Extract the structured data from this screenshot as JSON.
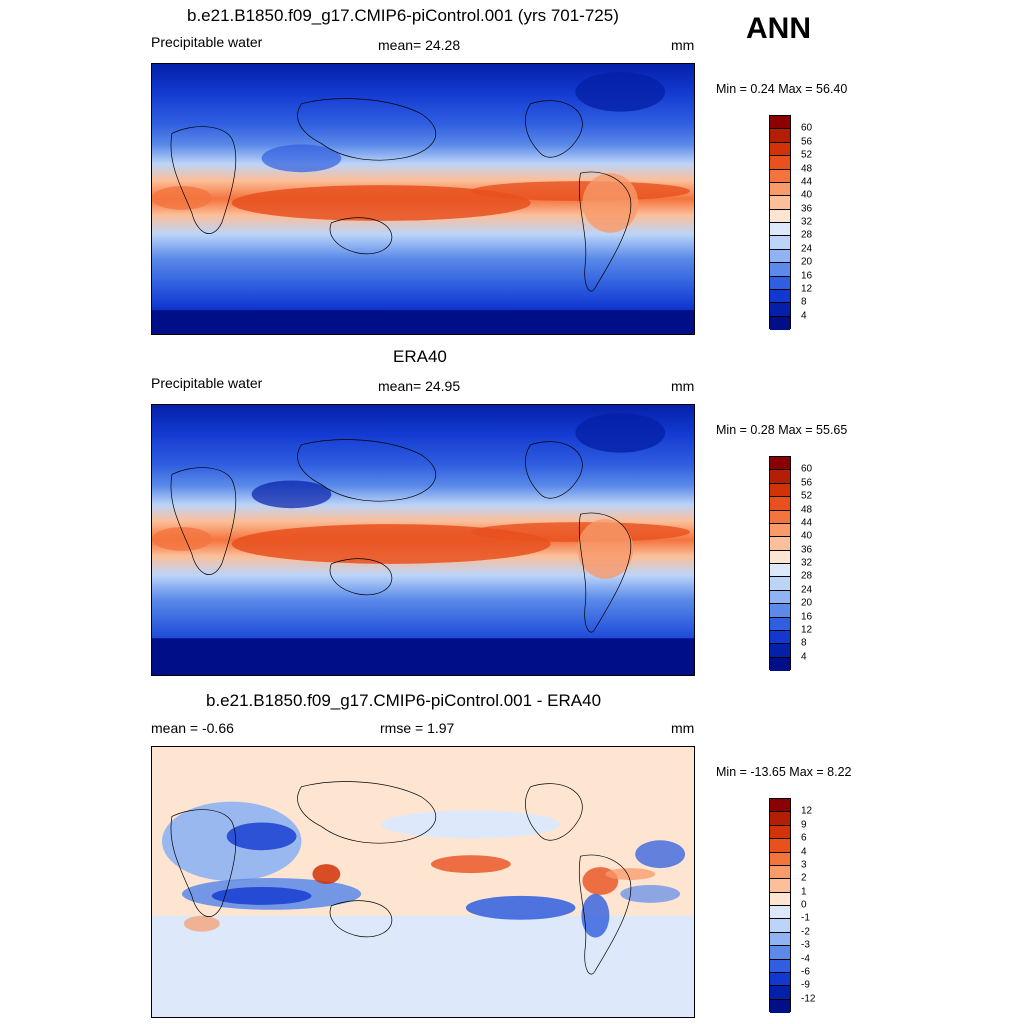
{
  "season": "ANN",
  "panels": [
    {
      "title": "b.e21.B1850.f09_g17.CMIP6-piControl.001 (yrs 701-725)",
      "left": "Precipitable water",
      "center": "mean=  24.28",
      "units": "mm",
      "minmax": "Min =   0.24 Max =  56.40"
    },
    {
      "title": "ERA40",
      "left": "Precipitable water",
      "center": "mean=  24.95",
      "units": "mm",
      "minmax": "Min =   0.28 Max =  55.65"
    },
    {
      "title": "b.e21.B1850.f09_g17.CMIP6-piControl.001 - ERA40",
      "left": "mean =  -0.66",
      "center": "rmse =   1.97",
      "units": "mm",
      "minmax": "Min = -13.65 Max =   8.22"
    }
  ],
  "colorbars": {
    "abs": {
      "labels": [
        "60",
        "56",
        "52",
        "48",
        "44",
        "40",
        "36",
        "32",
        "28",
        "24",
        "20",
        "16",
        "12",
        "8",
        "4"
      ],
      "colors": [
        "#8b0000",
        "#b41e05",
        "#d23208",
        "#e8501e",
        "#f4743e",
        "#f89a6a",
        "#fbbf9a",
        "#fde5d2",
        "#dde9fb",
        "#bcd4f8",
        "#8fb3f3",
        "#5b8ae9",
        "#2f5ee0",
        "#1238d0",
        "#0520a8",
        "#000f88"
      ]
    },
    "diff": {
      "labels": [
        "12",
        "9",
        "6",
        "4",
        "3",
        "2",
        "1",
        "0",
        "-1",
        "-2",
        "-3",
        "-4",
        "-6",
        "-9",
        "-12"
      ],
      "colors": [
        "#8b0000",
        "#b41e05",
        "#d23208",
        "#e8501e",
        "#f4743e",
        "#f89a6a",
        "#fbbf9a",
        "#fde5d2",
        "#dde9fb",
        "#bcd4f8",
        "#8fb3f3",
        "#5b8ae9",
        "#2f5ee0",
        "#1238d0",
        "#0520a8",
        "#000f88"
      ]
    }
  },
  "chart_data": [
    {
      "type": "heatmap",
      "title": "b.e21.B1850.f09_g17.CMIP6-piControl.001 (yrs 701-725)",
      "variable": "Precipitable water",
      "units": "mm",
      "mean": 24.28,
      "min": 0.24,
      "max": 56.4,
      "contour_levels": [
        4,
        8,
        12,
        16,
        20,
        24,
        28,
        32,
        36,
        40,
        44,
        48,
        52,
        56,
        60
      ]
    },
    {
      "type": "heatmap",
      "title": "ERA40",
      "variable": "Precipitable water",
      "units": "mm",
      "mean": 24.95,
      "min": 0.28,
      "max": 55.65,
      "contour_levels": [
        4,
        8,
        12,
        16,
        20,
        24,
        28,
        32,
        36,
        40,
        44,
        48,
        52,
        56,
        60
      ]
    },
    {
      "type": "heatmap",
      "title": "b.e21.B1850.f09_g17.CMIP6-piControl.001 - ERA40",
      "units": "mm",
      "mean": -0.66,
      "rmse": 1.97,
      "min": -13.65,
      "max": 8.22,
      "contour_levels": [
        -12,
        -9,
        -6,
        -4,
        -3,
        -2,
        -1,
        0,
        1,
        2,
        3,
        4,
        6,
        9,
        12
      ]
    }
  ]
}
